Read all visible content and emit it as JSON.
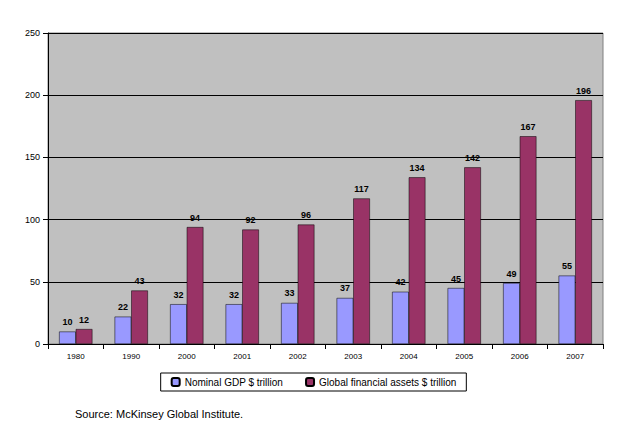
{
  "chart_data": {
    "type": "bar",
    "categories": [
      "1980",
      "1990",
      "2000",
      "2001",
      "2002",
      "2003",
      "2004",
      "2005",
      "2006",
      "2007"
    ],
    "series": [
      {
        "name": "Nominal GDP $ trillion",
        "color": "#9999ff",
        "values": [
          10,
          22,
          32,
          32,
          33,
          37,
          42,
          45,
          49,
          55
        ]
      },
      {
        "name": "Global financial assets $ trillion",
        "color": "#993366",
        "values": [
          12,
          43,
          94,
          92,
          96,
          117,
          134,
          142,
          167,
          196
        ]
      }
    ],
    "ylim": [
      0,
      250
    ],
    "yticks": [
      0,
      50,
      100,
      150,
      200,
      250
    ],
    "grid": true,
    "data_labels": true,
    "legend": "bottom",
    "annotations": [
      "Source: McKinsey Global Institute."
    ]
  }
}
